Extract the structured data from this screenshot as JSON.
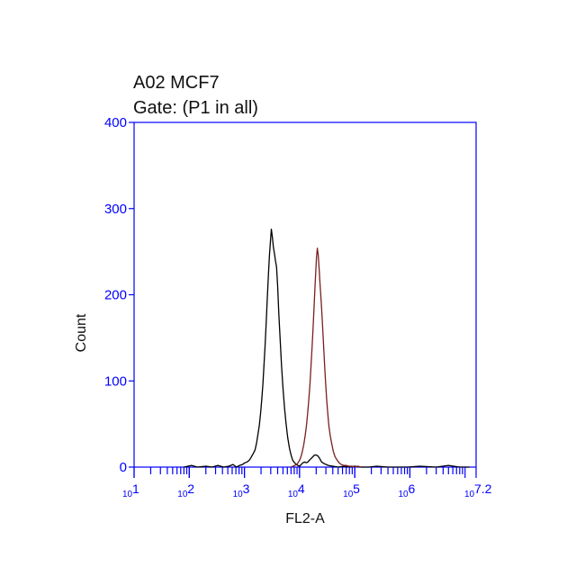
{
  "chart_data": {
    "type": "line",
    "title": "A02 MCF7",
    "subtitle": "Gate: (P1 in all)",
    "xlabel": "FL2-A",
    "ylabel": "Count",
    "x_scale": "log",
    "xlim": [
      10,
      15848931.9
    ],
    "ylim": [
      0,
      400
    ],
    "yticks": [
      0,
      100,
      200,
      300,
      400
    ],
    "xticks": [
      {
        "value": 10,
        "base": "10",
        "exp": "1"
      },
      {
        "value": 100,
        "base": "10",
        "exp": "2"
      },
      {
        "value": 1000,
        "base": "10",
        "exp": "3"
      },
      {
        "value": 10000,
        "base": "10",
        "exp": "4"
      },
      {
        "value": 100000,
        "base": "10",
        "exp": "5"
      },
      {
        "value": 1000000,
        "base": "10",
        "exp": "6"
      },
      {
        "value": 15848931.9,
        "base": "10",
        "exp": "7.2"
      }
    ],
    "grid": false,
    "colors": {
      "axis": "#0000ff",
      "tick_labels": "#0000ff",
      "text": "#111111"
    },
    "series": [
      {
        "color": "#000000",
        "x": [
          80,
          110,
          140,
          200,
          260,
          330,
          420,
          520,
          620,
          720,
          820,
          920,
          1020,
          1120,
          1230,
          1340,
          1450,
          1560,
          1660,
          1760,
          1860,
          1960,
          2060,
          2160,
          2260,
          2370,
          2480,
          2600,
          2720,
          2840,
          2960,
          3080,
          3200,
          3350,
          3500,
          3650,
          3820,
          4000,
          4200,
          4450,
          4700,
          5000,
          5350,
          5700,
          6100,
          6550,
          7000,
          7500,
          8100,
          8700,
          9300,
          10000,
          10700,
          11500,
          12300,
          13200,
          14100,
          15100,
          16200,
          17400,
          18700,
          20000,
          21500,
          23100,
          25000,
          28000,
          33000,
          40000,
          50000,
          65000,
          80000,
          100000,
          130000,
          180000,
          250000,
          400000,
          600000,
          900000,
          1500000,
          3000000,
          5000000,
          8000000,
          12000000
        ],
        "y": [
          0,
          2,
          0,
          1,
          0,
          2,
          0,
          1,
          3,
          0,
          2,
          3,
          5,
          6,
          8,
          12,
          16,
          20,
          28,
          38,
          48,
          62,
          78,
          96,
          118,
          140,
          168,
          196,
          222,
          246,
          262,
          276,
          268,
          255,
          248,
          240,
          232,
          210,
          178,
          148,
          118,
          92,
          68,
          50,
          34,
          22,
          14,
          8,
          5,
          3,
          2,
          1,
          3,
          5,
          6,
          5,
          6,
          8,
          10,
          12,
          14,
          14,
          13,
          10,
          6,
          4,
          2,
          1,
          0,
          1,
          0,
          1,
          0,
          0,
          1,
          0,
          0,
          0,
          1,
          0,
          2,
          0,
          0
        ]
      },
      {
        "color": "#7a1f1f",
        "x": [
          7000,
          7600,
          8200,
          8800,
          9400,
          10000,
          10600,
          11200,
          11900,
          12600,
          13300,
          14000,
          14700,
          15400,
          16100,
          16800,
          17500,
          18200,
          18900,
          19600,
          20300,
          21000,
          21800,
          22600,
          23400,
          24200,
          25000,
          25900,
          26800,
          27700,
          28700,
          29800,
          31000,
          32500,
          34000,
          36000,
          38500,
          41000,
          44000,
          48000,
          52000,
          57000,
          63000,
          70000,
          78000,
          88000,
          100000,
          115000,
          130000
        ],
        "y": [
          0,
          1,
          2,
          3,
          5,
          8,
          12,
          18,
          26,
          36,
          48,
          62,
          78,
          96,
          116,
          138,
          160,
          182,
          205,
          226,
          244,
          254,
          246,
          230,
          214,
          200,
          185,
          168,
          150,
          132,
          114,
          96,
          78,
          62,
          48,
          36,
          26,
          18,
          12,
          8,
          5,
          3,
          2,
          2,
          1,
          1,
          0,
          1,
          0
        ]
      }
    ]
  }
}
